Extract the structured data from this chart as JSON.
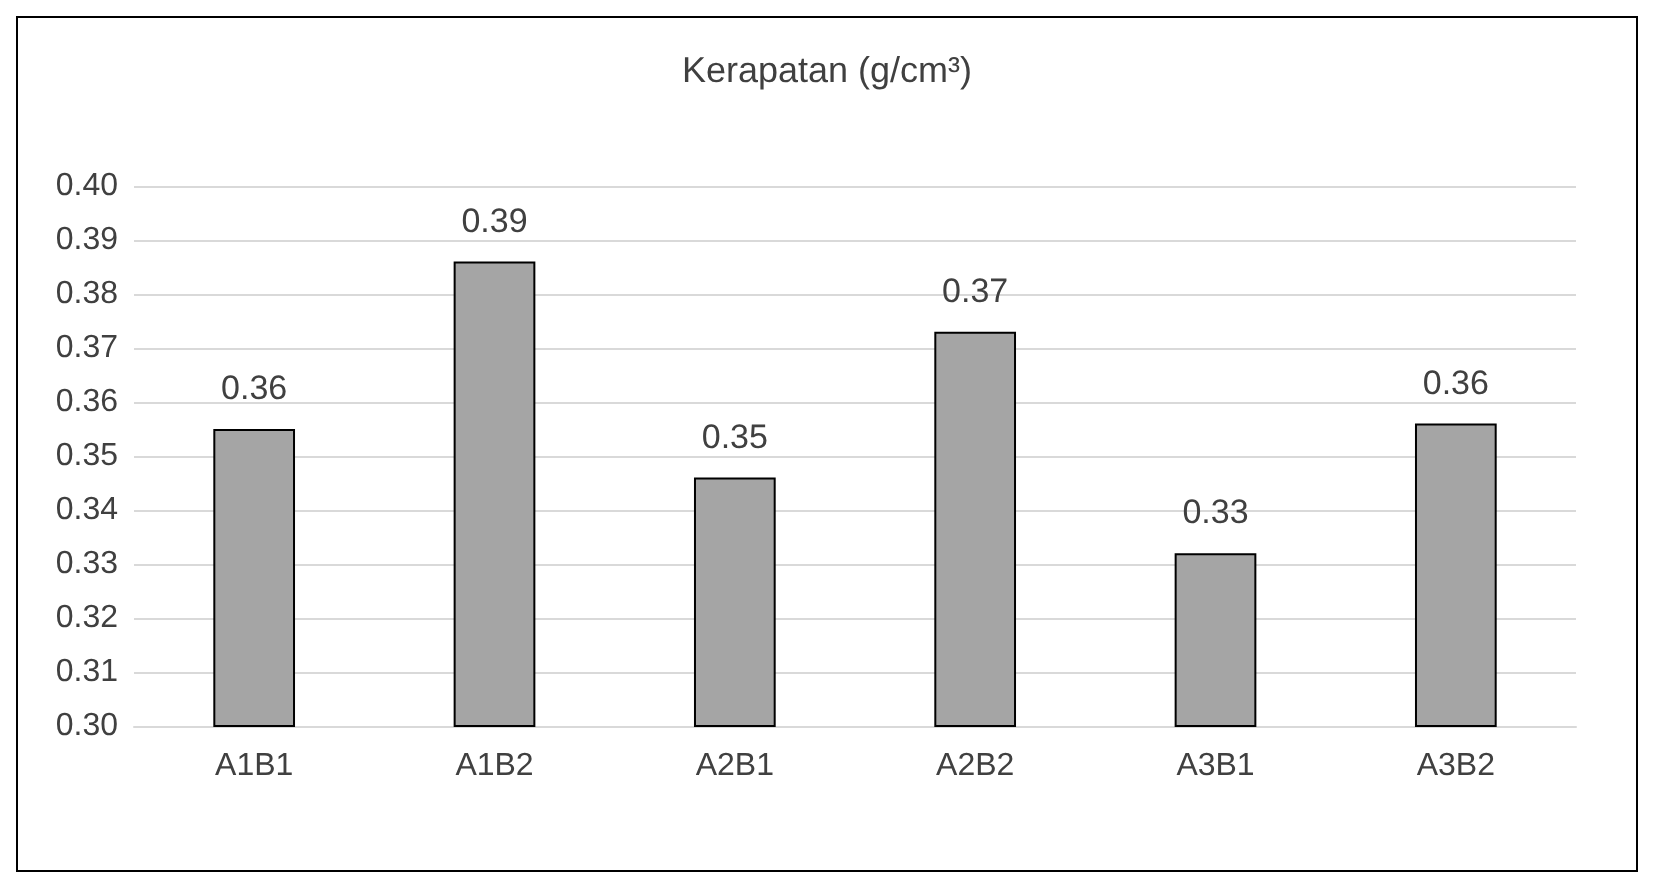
{
  "chart_data": {
    "type": "bar",
    "title": "Kerapatan (g/cm³)",
    "categories": [
      "A1B1",
      "A1B2",
      "A2B1",
      "A2B2",
      "A3B1",
      "A3B2"
    ],
    "values": [
      0.355,
      0.386,
      0.346,
      0.373,
      0.332,
      0.356
    ],
    "value_labels": [
      "0.36",
      "0.39",
      "0.35",
      "0.37",
      "0.33",
      "0.36"
    ],
    "color": "#a5a5a5",
    "ylim": [
      0.3,
      0.4
    ],
    "yticks": [
      {
        "value": 0.3,
        "label": "0.30"
      },
      {
        "value": 0.31,
        "label": "0.31"
      },
      {
        "value": 0.32,
        "label": "0.32"
      },
      {
        "value": 0.33,
        "label": "0.33"
      },
      {
        "value": 0.34,
        "label": "0.34"
      },
      {
        "value": 0.35,
        "label": "0.35"
      },
      {
        "value": 0.36,
        "label": "0.36"
      },
      {
        "value": 0.37,
        "label": "0.37"
      },
      {
        "value": 0.38,
        "label": "0.38"
      },
      {
        "value": 0.39,
        "label": "0.39"
      },
      {
        "value": 0.4,
        "label": "0.40"
      }
    ],
    "grid": "y"
  }
}
